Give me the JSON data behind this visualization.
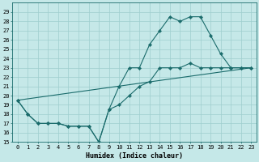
{
  "xlabel": "Humidex (Indice chaleur)",
  "ylabel": "",
  "bg_color": "#c5e8e8",
  "grid_color": "#9ecece",
  "line_color": "#1a6b6b",
  "xlim": [
    -0.5,
    23.5
  ],
  "ylim": [
    15,
    30
  ],
  "xticks": [
    0,
    1,
    2,
    3,
    4,
    5,
    6,
    7,
    8,
    9,
    10,
    11,
    12,
    13,
    14,
    15,
    16,
    17,
    18,
    19,
    20,
    21,
    22,
    23
  ],
  "yticks": [
    15,
    16,
    17,
    18,
    19,
    20,
    21,
    22,
    23,
    24,
    25,
    26,
    27,
    28,
    29
  ],
  "line1_x": [
    0,
    1,
    2,
    3,
    4,
    5,
    6,
    7,
    8,
    9,
    10,
    11,
    12,
    13,
    14,
    15,
    16,
    17,
    18,
    19,
    20,
    21,
    22,
    23
  ],
  "line1_y": [
    19.5,
    18,
    17,
    17,
    17,
    16.7,
    16.7,
    16.7,
    15,
    18.5,
    19,
    20,
    21,
    21.5,
    23,
    23,
    23,
    23.5,
    23,
    23,
    23,
    23,
    23,
    23
  ],
  "line2_x": [
    0,
    1,
    2,
    3,
    4,
    5,
    6,
    7,
    8,
    9,
    10,
    11,
    12,
    13,
    14,
    15,
    16,
    17,
    18,
    19,
    20,
    21,
    22,
    23
  ],
  "line2_y": [
    19.5,
    18,
    17,
    17,
    17,
    16.7,
    16.7,
    16.7,
    15,
    18.5,
    21,
    23,
    23,
    25.5,
    27,
    28.5,
    28,
    28.5,
    28.5,
    26.5,
    24.5,
    23,
    23,
    23
  ],
  "line3_x": [
    0,
    23
  ],
  "line3_y": [
    19.5,
    23
  ],
  "xlabel_fontsize": 6,
  "tick_fontsize": 5
}
